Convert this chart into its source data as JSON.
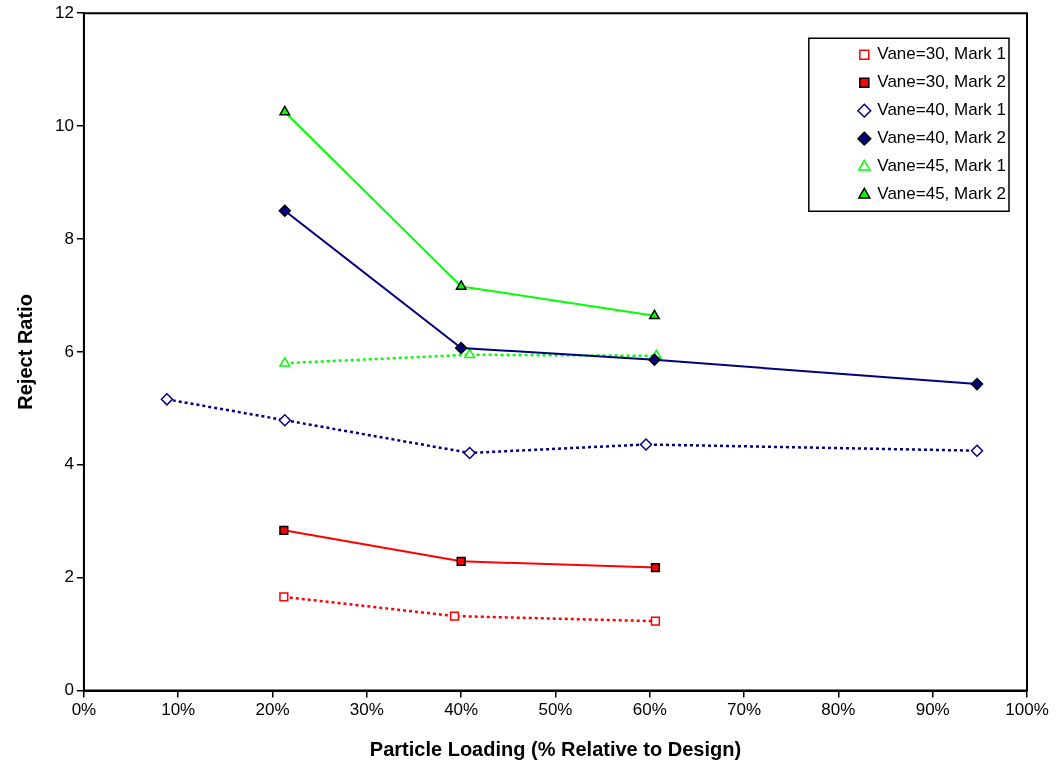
{
  "chart_data": {
    "type": "line",
    "xlabel": "Particle Loading (% Relative to Design)",
    "ylabel": "Reject Ratio",
    "xlim": [
      0,
      100
    ],
    "xticks": [
      {
        "value": 0,
        "label": "0%"
      },
      {
        "value": 10,
        "label": "10%"
      },
      {
        "value": 20,
        "label": "20%"
      },
      {
        "value": 30,
        "label": "30%"
      },
      {
        "value": 40,
        "label": "40%"
      },
      {
        "value": 50,
        "label": "50%"
      },
      {
        "value": 60,
        "label": "60%"
      },
      {
        "value": 70,
        "label": "70%"
      },
      {
        "value": 80,
        "label": "80%"
      },
      {
        "value": 90,
        "label": "90%"
      },
      {
        "value": 100,
        "label": "100%"
      }
    ],
    "ylim": [
      0,
      12
    ],
    "yticks": [
      0,
      2,
      4,
      6,
      8,
      10,
      12
    ],
    "grid": false,
    "legend": "top right",
    "series": [
      {
        "name": "Vane=30, Mark 1",
        "color": "#ff0000",
        "marker": "square",
        "line_style": "dotted",
        "x": [
          21.2,
          39.3,
          60.6
        ],
        "values": [
          1.66,
          1.32,
          1.23
        ]
      },
      {
        "name": "Vane=30, Mark 2",
        "color": "#ff0000",
        "marker": "square",
        "line_style": "solid",
        "x": [
          21.2,
          40,
          60.6
        ],
        "values": [
          2.84,
          2.29,
          2.18
        ]
      },
      {
        "name": "Vane=40, Mark 1",
        "color": "#000080",
        "marker": "diamond",
        "line_style": "dotted",
        "x": [
          8.8,
          21.3,
          40.9,
          59.6,
          94.7
        ],
        "values": [
          5.16,
          4.79,
          4.21,
          4.36,
          4.25
        ]
      },
      {
        "name": "Vane=40, Mark 2",
        "color": "#000080",
        "marker": "diamond",
        "line_style": "solid",
        "x": [
          21.3,
          40,
          60.5,
          94.7
        ],
        "values": [
          8.5,
          6.07,
          5.86,
          5.43
        ]
      },
      {
        "name": "Vane=45, Mark 1",
        "color": "#00ff00",
        "marker": "triangle",
        "line_style": "dotted",
        "x": [
          21.3,
          40.9,
          60.7
        ],
        "values": [
          5.8,
          5.95,
          5.93
        ]
      },
      {
        "name": "Vane=45, Mark 2",
        "color": "#00ff00",
        "marker": "triangle",
        "line_style": "solid",
        "x": [
          21.3,
          40,
          60.5
        ],
        "values": [
          10.25,
          7.16,
          6.64
        ]
      }
    ]
  }
}
